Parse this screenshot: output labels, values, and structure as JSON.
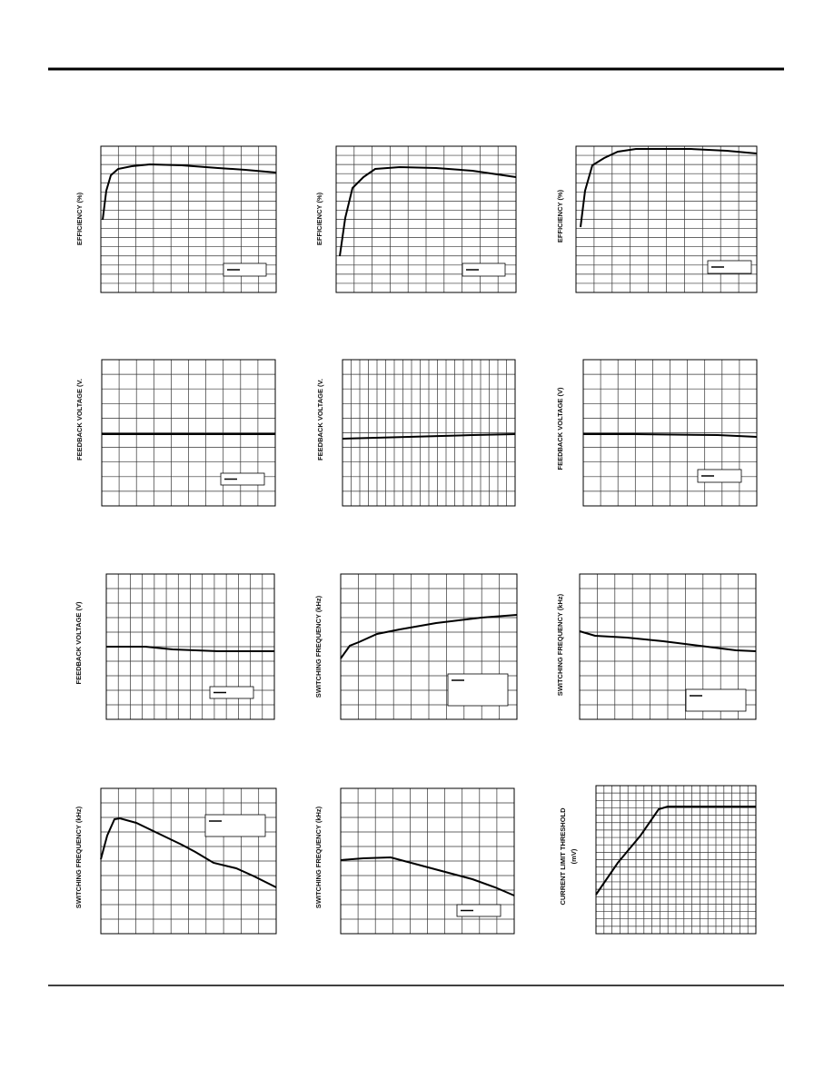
{
  "labels": {
    "c1": "EFFICIENCY (%)",
    "c2": "EFFICIENCY (%)",
    "c3": "EFFICIENCY (%)",
    "c4": "FEEDBACK VOLTAGE (V.",
    "c5": "FEEDBACK VOLTAGE (V.",
    "c6": "FEEDBACK VOLTAGE (V)",
    "c7": "FEEDBACK VOLTAGE (V)",
    "c8": "SWITCHING FREQUENCY (kHz)",
    "c9": "SWITCHING FREQUENCY (kHz)",
    "c10": "SWITCHING FREQUENCY (kHz)",
    "c11": "SWITCHING FREQUENCY (kHz)",
    "c12a": "CURRENT LIMIT THRESHOLD",
    "c12b": "(mV)"
  }
}
